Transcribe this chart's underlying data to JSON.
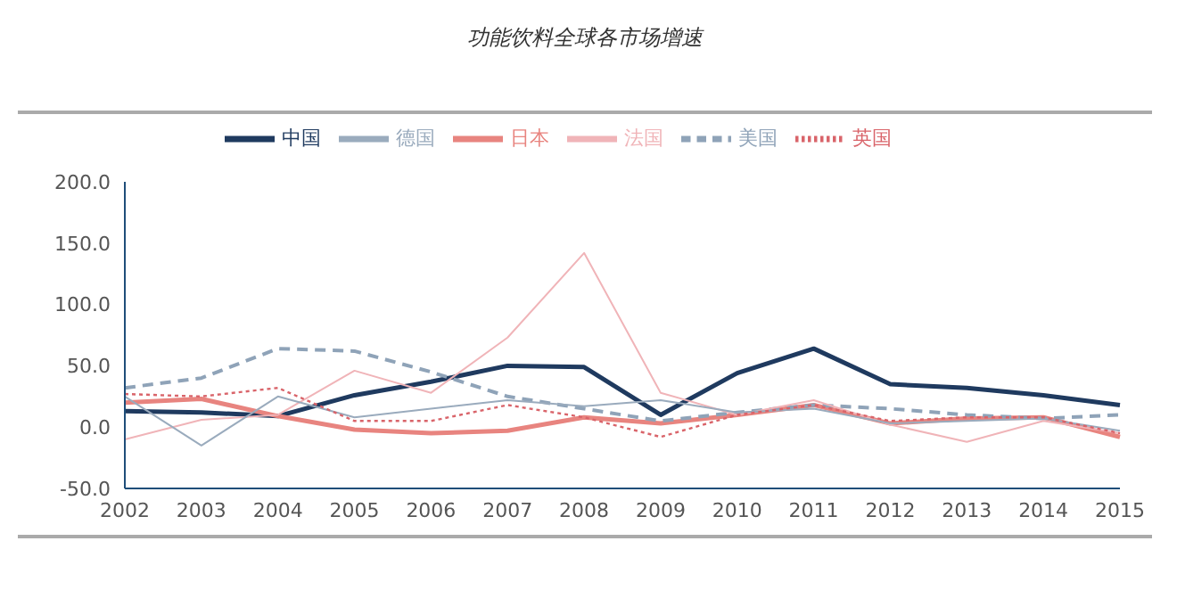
{
  "chart_data": {
    "type": "line",
    "title": "功能饮料全球各市场增速",
    "categories": [
      "2002",
      "2003",
      "2004",
      "2005",
      "2006",
      "2007",
      "2008",
      "2009",
      "2010",
      "2011",
      "2012",
      "2013",
      "2014",
      "2015"
    ],
    "series": [
      {
        "name": "中国",
        "color": "#1f3a5f",
        "line_style": "solid",
        "values": [
          13,
          12,
          9,
          26,
          37,
          50,
          49,
          10,
          44,
          64,
          35,
          32,
          26,
          18
        ]
      },
      {
        "name": "日本",
        "color": "#e8847f",
        "line_style": "solid",
        "values": [
          20,
          23,
          9,
          -2,
          -5,
          -3,
          8,
          3,
          10,
          18,
          3,
          7,
          8,
          -8
        ]
      },
      {
        "name": "美国",
        "color": "#8fa3b8",
        "line_style": "dashed",
        "values": [
          32,
          40,
          64,
          62,
          45,
          25,
          15,
          5,
          12,
          18,
          15,
          10,
          7,
          10
        ]
      },
      {
        "name": "法国",
        "color": "#f0b4b8",
        "line_style": "solid",
        "values": [
          -10,
          6,
          10,
          46,
          28,
          73,
          142,
          28,
          10,
          22,
          2,
          -12,
          5,
          -5
        ]
      },
      {
        "name": "德国",
        "color": "#9aabbd",
        "line_style": "solid",
        "values": [
          25,
          -15,
          25,
          8,
          15,
          22,
          17,
          22,
          12,
          15,
          3,
          5,
          7,
          -3
        ]
      },
      {
        "name": "英国",
        "color": "#d9646a",
        "line_style": "dotted",
        "values": [
          27,
          25,
          32,
          5,
          5,
          18,
          8,
          -8,
          10,
          18,
          5,
          8,
          8,
          -5
        ]
      }
    ],
    "ylim": [
      -50,
      200
    ],
    "yticks": [
      {
        "value": -50,
        "label": "-50.0"
      },
      {
        "value": 0,
        "label": "0.0"
      },
      {
        "value": 50,
        "label": "50.0"
      },
      {
        "value": 100,
        "label": "100.0"
      },
      {
        "value": 150,
        "label": "150.0"
      },
      {
        "value": 200,
        "label": "200.0"
      }
    ],
    "grid": false,
    "legend": "top",
    "marker": "none"
  }
}
